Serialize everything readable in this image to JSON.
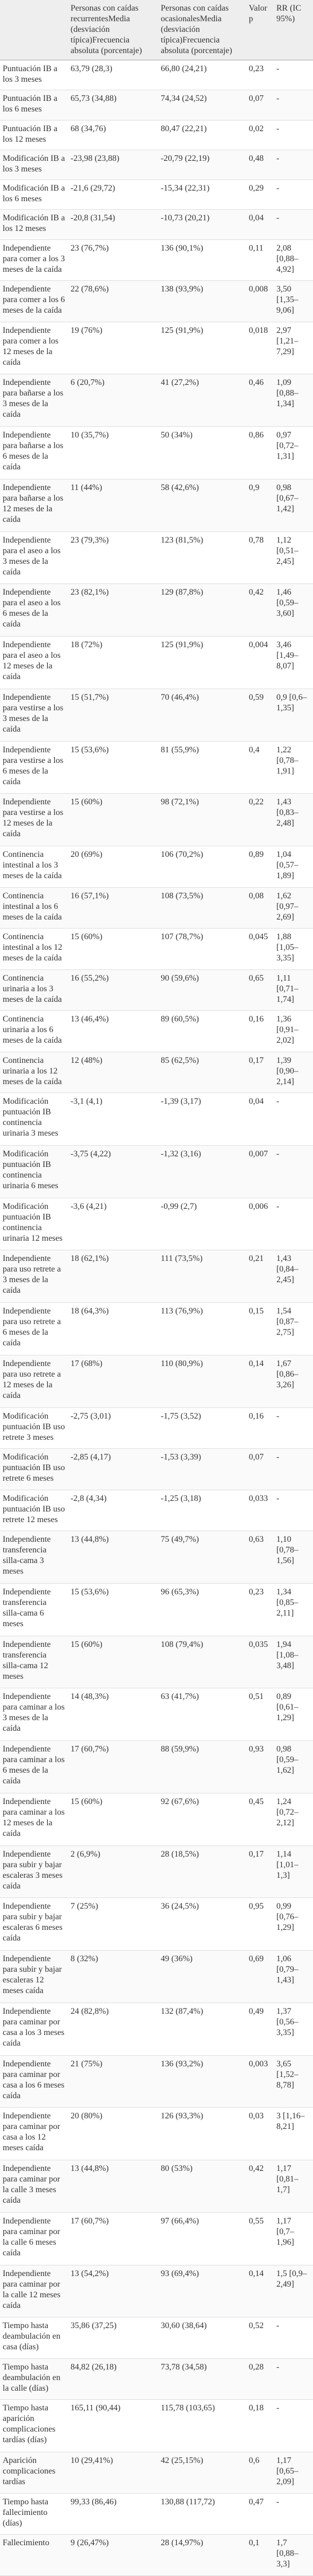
{
  "table": {
    "header": [
      "Personas con caídas recurrentesMedia (desviación típica)Frecuencia absoluta (porcentaje)",
      "Personas con caídas ocasionalesMedia (desviación típica)Frecuencia absoluta (porcentaje)",
      "Valor p",
      "RR (IC 95%)"
    ],
    "rows": [
      [
        "Puntuación IB a los 3 meses",
        "63,79 (28,3)",
        "66,80 (24,21)",
        "0,23",
        "-"
      ],
      [
        "Puntuación IB a los 6 meses",
        "65,73 (34,88)",
        "74,34 (24,52)",
        "0,07",
        "-"
      ],
      [
        "Puntuación IB a los 12 meses",
        "68 (34,76)",
        "80,47 (22,21)",
        "0,02",
        "-"
      ],
      [
        "Modificación IB a los 3 meses",
        "-23,98 (23,88)",
        "-20,79 (22,19)",
        "0,48",
        "-"
      ],
      [
        "Modificación IB a los 6 meses",
        "-21,6 (29,72)",
        "-15,34 (22,31)",
        "0,29",
        "-"
      ],
      [
        "Modificación IB a los 12 meses",
        "-20,8 (31,54)",
        "-10,73 (20,21)",
        "0,04",
        "-"
      ],
      [
        "Independiente para comer a los 3 meses de la caída",
        "23 (76,7%)",
        "136 (90,1%)",
        "0,11",
        "2,08 [0,88–4,92]"
      ],
      [
        "Independiente para comer a los 6 meses de la caída",
        "22 (78,6%)",
        "138 (93,9%)",
        "0,008",
        "3,50 [1,35–9,06]"
      ],
      [
        "Independiente para comer a los 12 meses de la caída",
        "19 (76%)",
        "125 (91,9%)",
        "0,018",
        "2,97 [1,21–7,29]"
      ],
      [
        "Independiente para bañarse a los 3 meses de la caída",
        "6 (20,7%)",
        "41 (27,2%)",
        "0,46",
        "1,09 [0,88–1,34]"
      ],
      [
        "Independiente para bañarse a los 6 meses de la caída",
        "10 (35,7%)",
        "50 (34%)",
        "0,86",
        "0,97 [0,72–1,31]"
      ],
      [
        "Independiente para bañarse a los 12 meses de la caída",
        "11 (44%)",
        "58 (42,6%)",
        "0,9",
        "0,98 [0,67–1,42]"
      ],
      [
        "Independiente para el aseo a los 3 meses de la caída",
        "23 (79,3%)",
        "123 (81,5%)",
        "0,78",
        "1,12 [0,51–2,45]"
      ],
      [
        "Independiente para el aseo a los 6 meses de la caída",
        "23 (82,1%)",
        "129 (87,8%)",
        "0,42",
        "1,46 [0,59–3,60]"
      ],
      [
        "Independiente para el aseo a los 12 meses de la caída",
        "18 (72%)",
        "125 (91,9%)",
        "0,004",
        "3,46 [1,49–8,07]"
      ],
      [
        "Independiente para vestirse a los 3 meses de la caída",
        "15 (51,7%)",
        "70 (46,4%)",
        "0,59",
        "0,9 [0,6–1,35]"
      ],
      [
        "Independiente para vestirse a los 6 meses de la caída",
        "15 (53,6%)",
        "81 (55,9%)",
        "0,4",
        "1,22 [0,78–1,91]"
      ],
      [
        "Independiente para vestirse a los 12 meses de la caída",
        "15 (60%)",
        "98 (72,1%)",
        "0,22",
        "1,43 [0,83–2,48]"
      ],
      [
        "Continencia intestinal a los 3 meses de la caída",
        "20 (69%)",
        "106 (70,2%)",
        "0,89",
        "1,04 [0,57–1,89]"
      ],
      [
        "Continencia intestinal a los 6 meses de la caída",
        "16 (57,1%)",
        "108 (73,5%)",
        "0,08",
        "1,62 [0,97–2,69]"
      ],
      [
        "Continencia intestinal a los 12 meses de la caída",
        "15 (60%)",
        "107 (78,7%)",
        "0,045",
        "1,88 [1,05–3,35]"
      ],
      [
        "Continencia urinaria a los 3 meses de la caída",
        "16 (55,2%)",
        "90 (59,6%)",
        "0,65",
        "1,11 [0,71–1,74]"
      ],
      [
        "Continencia urinaria a los 6 meses de la caída",
        "13 (46,4%)",
        "89 (60,5%)",
        "0,16",
        "1,36 [0,91–2,02]"
      ],
      [
        "Continencia urinaria a los 12 meses de la caída",
        "12 (48%)",
        "85 (62,5%)",
        "0,17",
        "1,39 [0,90–2,14]"
      ],
      [
        "Modificación puntuación IB continencia urinaria 3 meses",
        "-3,1 (4,1)",
        "-1,39 (3,17)",
        "0,04",
        "-"
      ],
      [
        "Modificación puntuación IB continencia urinaria 6 meses",
        "-3,75 (4,22)",
        "-1,32 (3,16)",
        "0,007",
        "-"
      ],
      [
        "Modificación puntuación IB continencia urinaria 12 meses",
        "-3,6 (4,21)",
        "-0,99 (2,7)",
        "0,006",
        "-"
      ],
      [
        "Independiente para uso retrete a 3 meses de la caída",
        "18 (62,1%)",
        "111 (73,5%)",
        "0,21",
        "1,43 [0,84–2,45]"
      ],
      [
        "Independiente para uso retrete a 6 meses de la caída",
        "18 (64,3%)",
        "113 (76,9%)",
        "0,15",
        "1,54 [0,87–2,75]"
      ],
      [
        "Independiente para uso retrete a 12 meses de la caída",
        "17 (68%)",
        "110 (80,9%)",
        "0,14",
        "1,67 [0,86–3,26]"
      ],
      [
        "Modificación puntuación IB uso retrete 3 meses",
        "-2,75 (3,01)",
        "-1,75 (3,52)",
        "0,16",
        "-"
      ],
      [
        "Modificación puntuación IB uso retrete 6 meses",
        "-2,85 (4,17)",
        "-1,53 (3,39)",
        "0,07",
        "-"
      ],
      [
        "Modificación puntuación IB uso retrete 12 meses",
        "-2,8 (4,34)",
        "-1,25 (3,18)",
        "0,033",
        "-"
      ],
      [
        "Independiente transferencia silla-cama 3 meses",
        "13 (44,8%)",
        "75 (49,7%)",
        "0,63",
        "1,10 [0,78–1,56]"
      ],
      [
        "Independiente transferencia silla-cama 6 meses",
        "15 (53,6%)",
        "96 (65,3%)",
        "0,23",
        "1,34 [0,85–2,11]"
      ],
      [
        "Independiente transferencia silla-cama 12 meses",
        "15 (60%)",
        "108 (79,4%)",
        "0,035",
        "1,94 [1,08–3,48]"
      ],
      [
        "Independiente para caminar a los 3 meses de la caída",
        "14 (48,3%)",
        "63 (41,7%)",
        "0,51",
        "0,89 [0,61–1,29]"
      ],
      [
        "Independiente para caminar a los 6 meses de la caída",
        "17 (60,7%)",
        "88 (59,9%)",
        "0,93",
        "0,98 [0,59–1,62]"
      ],
      [
        "Independiente para caminar a los 12 meses de la caída",
        "15 (60%)",
        "92 (67,6%)",
        "0,45",
        "1,24 [0,72–2,12]"
      ],
      [
        "Independiente para subir y bajar escaleras 3 meses caída",
        "2 (6,9%)",
        "28 (18,5%)",
        "0,17",
        "1,14 [1,01–1,3]"
      ],
      [
        "Independiente para subir y bajar escaleras 6 meses caída",
        "7 (25%)",
        "36 (24,5%)",
        "0,95",
        "0,99 [0,76–1,29]"
      ],
      [
        "Independiente para subir y bajar escaleras 12 meses caída",
        "8 (32%)",
        "49 (36%)",
        "0,69",
        "1,06 [0,79–1,43]"
      ],
      [
        "Independiente para caminar por casa a los 3 meses caída",
        "24 (82,8%)",
        "132 (87,4%)",
        "0,49",
        "1,37 [0,56–3,35]"
      ],
      [
        "Independiente para caminar por casa a los 6 meses caída",
        "21 (75%)",
        "136 (93,2%)",
        "0,003",
        "3,65 [1,52–8,78]"
      ],
      [
        "Independiente para caminar por casa a los 12 meses caída",
        "20 (80%)",
        "126 (93,3%)",
        "0,03",
        "3 [1,16–8,21]"
      ],
      [
        "Independiente para caminar por la calle 3 meses caída",
        "13 (44,8%)",
        "80 (53%)",
        "0,42",
        "1,17 [0,81–1,7]"
      ],
      [
        "Independiente para caminar por la calle 6 meses caída",
        "17 (60,7%)",
        "97 (66,4%)",
        "0,55",
        "1,17 [0,7–1,96]"
      ],
      [
        "Independiente para caminar por la calle 12 meses caída",
        "13 (54,2%)",
        "93 (69,4%)",
        "0,14",
        "1,5 [0,9–2,49]"
      ],
      [
        "Tiempo hasta deambulación en casa (días)",
        "35,86 (37,25)",
        "30,60 (38,64)",
        "0,52",
        "-"
      ],
      [
        "Tiempo hasta deambulación en la calle (días)",
        "84,82 (26,18)",
        "73,78 (34,58)",
        "0,28",
        "-"
      ],
      [
        "Tiempo hasta aparición complicaciones tardías (días)",
        "165,11 (90,44)",
        "115,78 (103,65)",
        "0,18",
        "-"
      ],
      [
        "Aparición complicaciones tardías",
        "10 (29,41%)",
        "42 (25,15%)",
        "0,6",
        "1,17 [0,65–2,09]"
      ],
      [
        "Tiempo hasta fallecimiento (días)",
        "99,33 (86,46)",
        "130,88 (117,72)",
        "0,47",
        "-"
      ],
      [
        "Fallecimiento",
        "9 (26,47%)",
        "28 (14,97%)",
        "0,1",
        "1,7 [0,88–3,3]"
      ]
    ]
  }
}
